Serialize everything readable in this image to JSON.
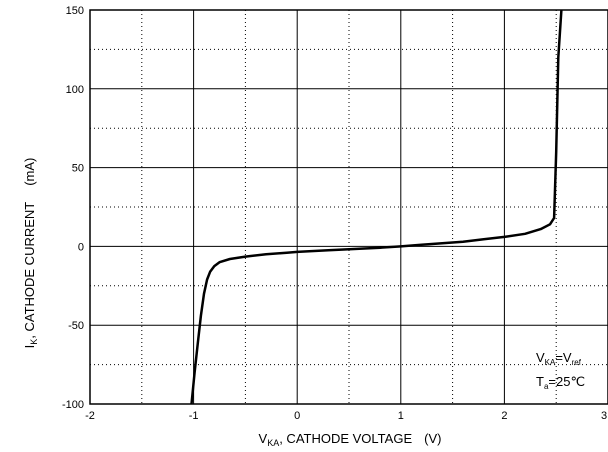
{
  "chart_data": {
    "type": "line",
    "title": "",
    "xlabel": {
      "prefix": "V",
      "sub": "KA",
      "rest": ", CATHODE VOLTAGE",
      "unit": "(V)"
    },
    "ylabel": {
      "prefix": "I",
      "sub": "K",
      "rest": ", CATHODE CURRENT",
      "unit": "(mA)"
    },
    "xlim": [
      -2,
      3
    ],
    "ylim": [
      -100,
      150
    ],
    "x_ticks": [
      -2,
      -1,
      0,
      1,
      2,
      3
    ],
    "y_ticks": [
      -100,
      -50,
      0,
      50,
      100,
      150
    ],
    "grid": {
      "major": "solid",
      "minor": "dotted"
    },
    "series": [
      {
        "x": [
          -1.02,
          -0.99,
          -0.96,
          -0.93,
          -0.9,
          -0.87,
          -0.84,
          -0.8,
          -0.75,
          -0.65,
          -0.5,
          -0.3,
          -0.1,
          0.0,
          0.3,
          0.6,
          0.8,
          1.0,
          1.2,
          1.4,
          1.6,
          1.8,
          2.0,
          2.2,
          2.35,
          2.44,
          2.48,
          2.5,
          2.52,
          2.55
        ],
        "y": [
          -100,
          -80,
          -62,
          -44,
          -30,
          -21,
          -16,
          -12.5,
          -10,
          -8,
          -6.5,
          -5,
          -4,
          -3.5,
          -2.5,
          -1.5,
          -0.8,
          0,
          1,
          2,
          3,
          4.5,
          6,
          8,
          11,
          14,
          18,
          60,
          120,
          155
        ]
      }
    ],
    "annotations": [
      {
        "line1": {
          "a": "V",
          "a_sub": "KA",
          "eq": "=V",
          "b_sub": "ref"
        }
      },
      {
        "line2": {
          "a": "T",
          "a_sub": "a",
          "rest": "=25℃"
        }
      }
    ]
  }
}
